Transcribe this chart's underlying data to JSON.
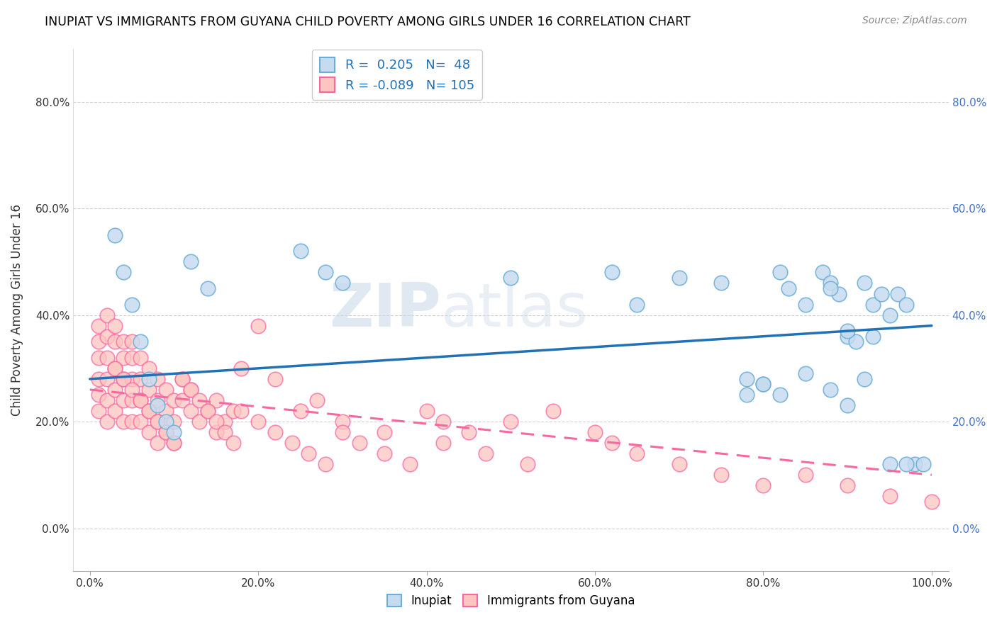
{
  "title": "INUPIAT VS IMMIGRANTS FROM GUYANA CHILD POVERTY AMONG GIRLS UNDER 16 CORRELATION CHART",
  "source": "Source: ZipAtlas.com",
  "ylabel": "Child Poverty Among Girls Under 16",
  "xlim": [
    0,
    100
  ],
  "r_inupiat": 0.205,
  "n_inupiat": 48,
  "r_guyana": -0.089,
  "n_guyana": 105,
  "blue_dot_face": "#c6dbef",
  "blue_dot_edge": "#6baed6",
  "pink_dot_face": "#fcc5c0",
  "pink_dot_edge": "#f768a1",
  "blue_line_color": "#2171b5",
  "pink_line_color": "#f768a1",
  "yticks": [
    0,
    20,
    40,
    60,
    80
  ],
  "ytick_labels": [
    "0.0%",
    "20.0%",
    "40.0%",
    "60.0%",
    "80.0%"
  ],
  "xticks": [
    0,
    20,
    40,
    60,
    80,
    100
  ],
  "xtick_labels": [
    "0.0%",
    "20.0%",
    "40.0%",
    "60.0%",
    "80.0%",
    "100.0%"
  ],
  "blue_trend_x0": 0,
  "blue_trend_y0": 28,
  "blue_trend_x1": 100,
  "blue_trend_y1": 38,
  "pink_trend_x0": 0,
  "pink_trend_y0": 26,
  "pink_trend_x1": 100,
  "pink_trend_y1": 10,
  "watermark": "ZIPatlas",
  "legend_r1": "R =  0.205",
  "legend_n1": "N=  48",
  "legend_r2": "R = -0.089",
  "legend_n2": "N= 105",
  "inupiat_x": [
    3,
    4,
    5,
    6,
    7,
    8,
    9,
    10,
    12,
    14,
    25,
    28,
    30,
    50,
    62,
    65,
    70,
    75,
    78,
    80,
    82,
    83,
    85,
    87,
    88,
    89,
    90,
    91,
    92,
    93,
    94,
    95,
    96,
    97,
    98,
    99,
    80,
    82,
    85,
    88,
    90,
    92,
    95,
    97,
    78,
    88,
    90,
    93
  ],
  "inupiat_y": [
    55,
    48,
    42,
    35,
    28,
    23,
    20,
    18,
    50,
    45,
    52,
    48,
    46,
    47,
    48,
    42,
    47,
    46,
    28,
    27,
    48,
    45,
    42,
    48,
    46,
    44,
    36,
    35,
    46,
    42,
    44,
    40,
    44,
    42,
    12,
    12,
    27,
    25,
    29,
    26,
    23,
    28,
    12,
    12,
    25,
    45,
    37,
    36
  ],
  "guyana_x": [
    1,
    1,
    1,
    1,
    1,
    1,
    2,
    2,
    2,
    2,
    2,
    2,
    3,
    3,
    3,
    3,
    3,
    4,
    4,
    4,
    4,
    4,
    5,
    5,
    5,
    5,
    5,
    6,
    6,
    6,
    6,
    7,
    7,
    7,
    7,
    8,
    8,
    8,
    8,
    9,
    9,
    9,
    10,
    10,
    10,
    11,
    11,
    12,
    12,
    13,
    14,
    15,
    15,
    16,
    17,
    18,
    20,
    22,
    25,
    27,
    30,
    35,
    40,
    42,
    45,
    50,
    55,
    60,
    62,
    65,
    70,
    75,
    80,
    85,
    90,
    95,
    100,
    3,
    4,
    5,
    6,
    7,
    8,
    9,
    10,
    11,
    12,
    13,
    14,
    15,
    16,
    17,
    18,
    20,
    22,
    24,
    26,
    28,
    30,
    32,
    35,
    38,
    42,
    47,
    52
  ],
  "guyana_y": [
    38,
    35,
    32,
    28,
    25,
    22,
    40,
    36,
    32,
    28,
    24,
    20,
    38,
    35,
    30,
    26,
    22,
    35,
    32,
    28,
    24,
    20,
    35,
    32,
    28,
    24,
    20,
    32,
    28,
    24,
    20,
    30,
    26,
    22,
    18,
    28,
    24,
    20,
    16,
    26,
    22,
    18,
    24,
    20,
    16,
    28,
    24,
    26,
    22,
    20,
    22,
    18,
    24,
    20,
    22,
    30,
    38,
    28,
    22,
    24,
    20,
    18,
    22,
    20,
    18,
    20,
    22,
    18,
    16,
    14,
    12,
    10,
    8,
    10,
    8,
    6,
    5,
    30,
    28,
    26,
    24,
    22,
    20,
    18,
    16,
    28,
    26,
    24,
    22,
    20,
    18,
    16,
    22,
    20,
    18,
    16,
    14,
    12,
    18,
    16,
    14,
    12,
    16,
    14,
    12
  ]
}
